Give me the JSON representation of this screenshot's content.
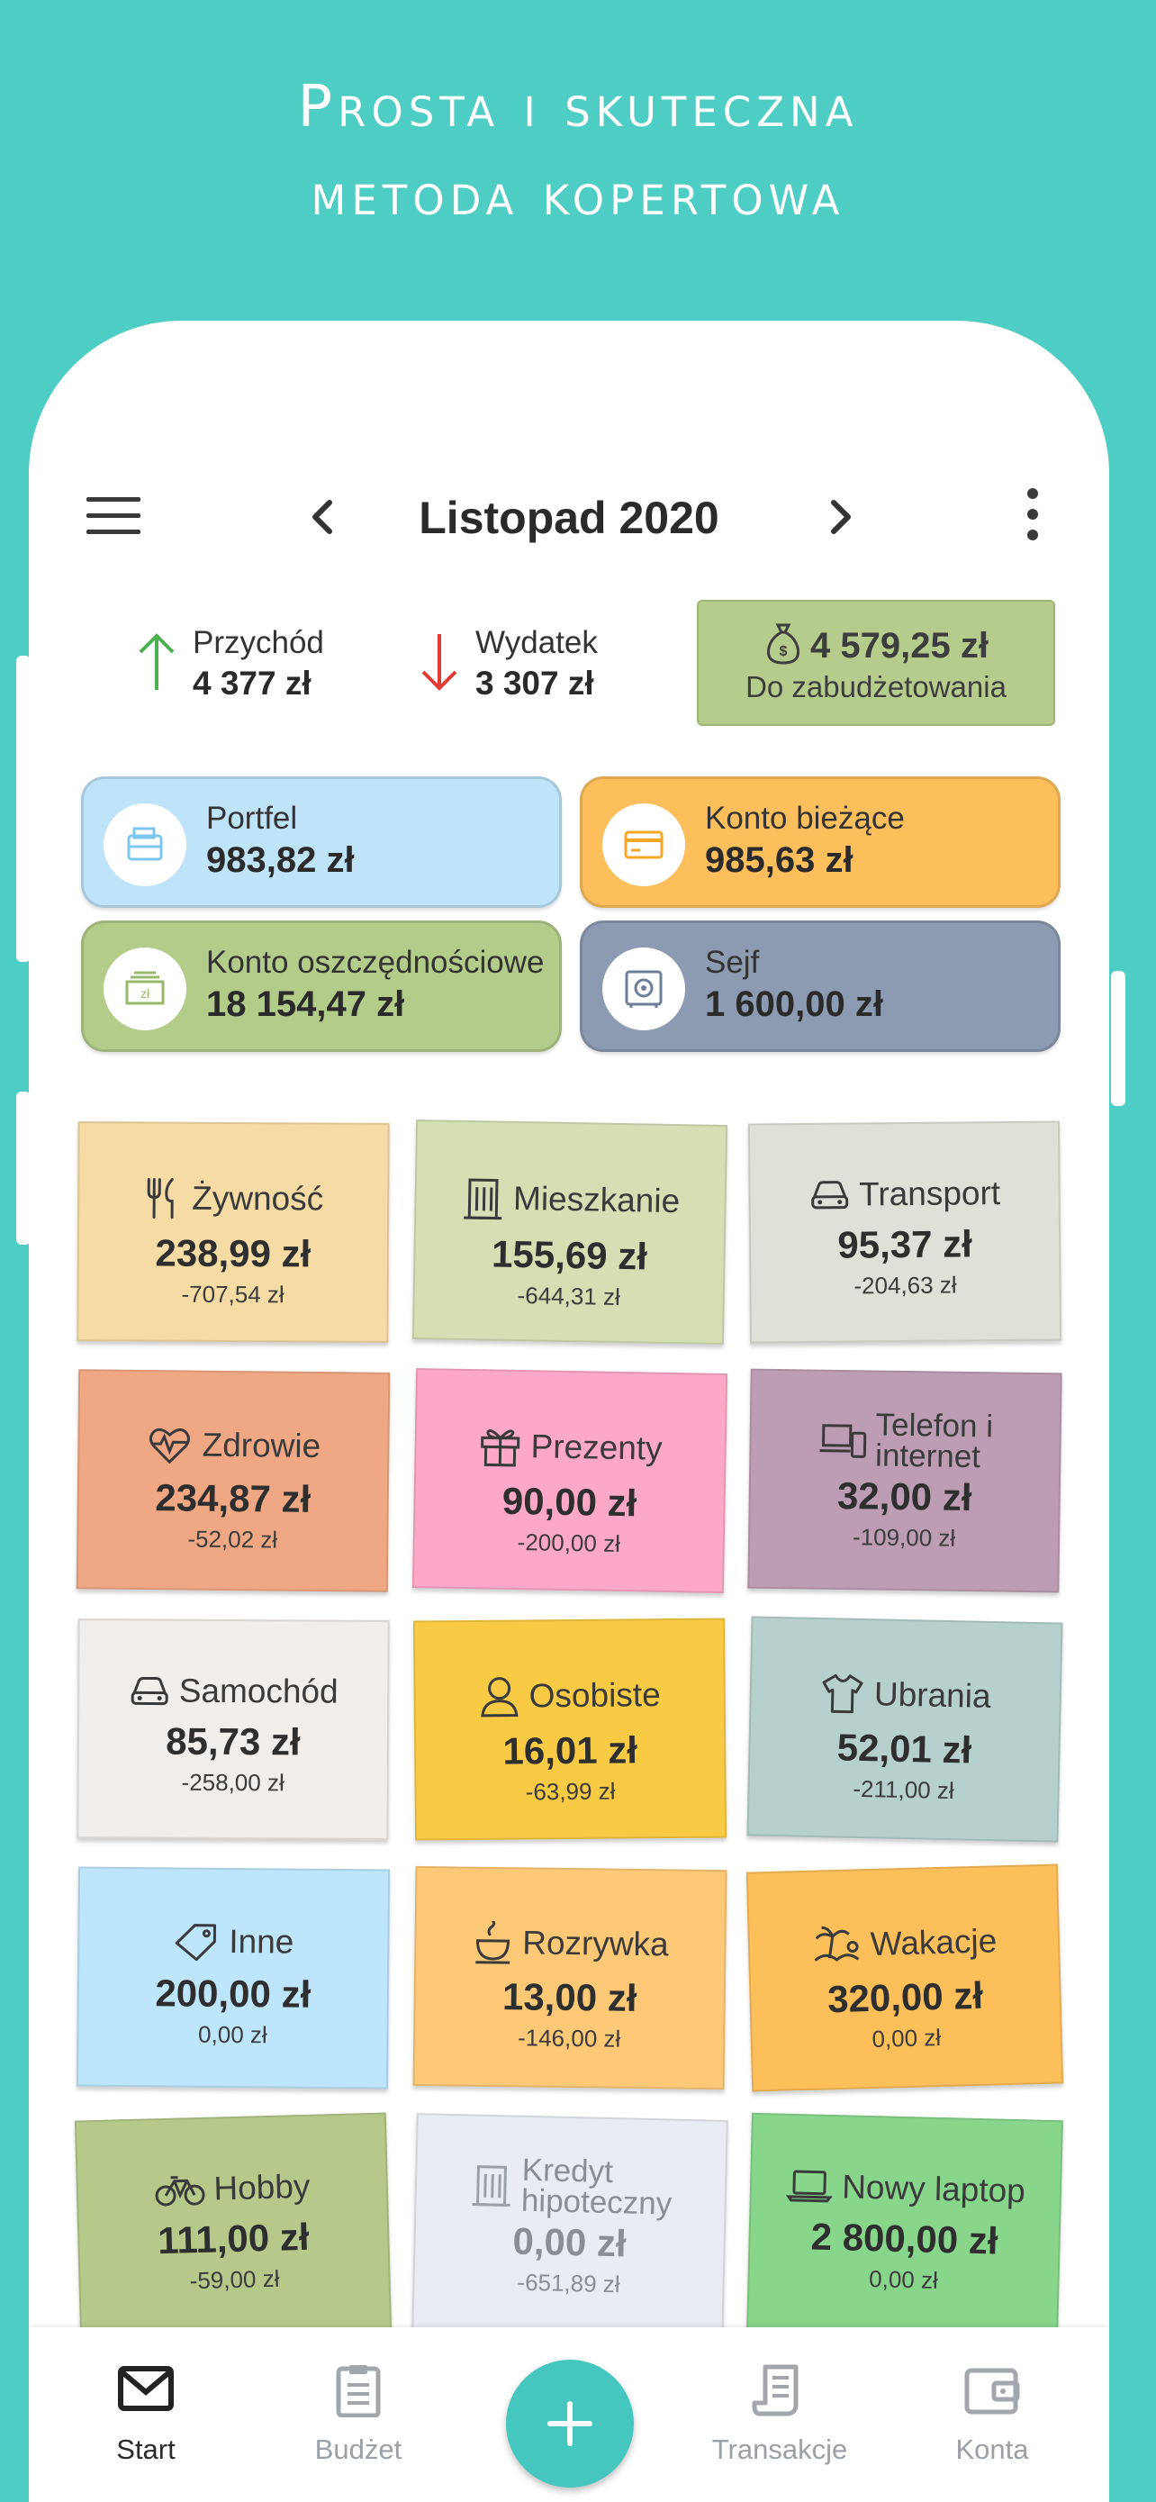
{
  "promo": {
    "line1": "Prosta i skuteczna",
    "line2": "metoda kopertowa"
  },
  "header": {
    "month": "Listopad 2020"
  },
  "summary": {
    "income_label": "Przychód",
    "income_amount": "4 377 zł",
    "expense_label": "Wydatek",
    "expense_amount": "3 307 zł",
    "to_budget_amount": "4 579,25 zł",
    "to_budget_label": "Do zabudżetowania"
  },
  "accounts": [
    {
      "name": "Portfel",
      "balance": "983,82 zł",
      "color": "#bfe4fa",
      "icon": "wallet-icon"
    },
    {
      "name": "Konto bieżące",
      "balance": "985,63 zł",
      "color": "#fdbf5c",
      "icon": "credit-card-icon"
    },
    {
      "name": "Konto oszczędnościowe",
      "balance": "18 154,47 zł",
      "color": "#b4cc8a",
      "icon": "cash-stack-icon"
    },
    {
      "name": "Sejf",
      "balance": "1 600,00 zł",
      "color": "#8c9bb2",
      "icon": "safe-icon"
    }
  ],
  "envelopes": [
    {
      "name": "Żywność",
      "amount": "238,99 zł",
      "spent": "-707,54 zł",
      "color": "#f6dca4",
      "icon": "cutlery-icon"
    },
    {
      "name": "Mieszkanie",
      "amount": "155,69 zł",
      "spent": "-644,31 zł",
      "color": "#d6dfb4",
      "icon": "building-icon"
    },
    {
      "name": "Transport",
      "amount": "95,37 zł",
      "spent": "-204,63 zł",
      "color": "#e0e0d8",
      "icon": "car-icon"
    },
    {
      "name": "Zdrowie",
      "amount": "234,87 zł",
      "spent": "-52,02 zł",
      "color": "#f0a884",
      "icon": "heartbeat-icon"
    },
    {
      "name": "Prezenty",
      "amount": "90,00 zł",
      "spent": "-200,00 zł",
      "color": "#fda8c8",
      "icon": "gift-icon"
    },
    {
      "name": "Telefon i",
      "name2": "internet",
      "amount": "32,00 zł",
      "spent": "-109,00 zł",
      "color": "#bd9db3",
      "icon": "devices-icon"
    },
    {
      "name": "Samochód",
      "amount": "85,73 zł",
      "spent": "-258,00 zł",
      "color": "#f1eeeb",
      "icon": "car-front-icon"
    },
    {
      "name": "Osobiste",
      "amount": "16,01 zł",
      "spent": "-63,99 zł",
      "color": "#f9cb44",
      "icon": "person-icon"
    },
    {
      "name": "Ubrania",
      "amount": "52,01 zł",
      "spent": "-211,00 zł",
      "color": "#b6d1cd",
      "icon": "shirt-icon"
    },
    {
      "name": "Inne",
      "amount": "200,00 zł",
      "spent": "0,00 zł",
      "color": "#bde5fb",
      "icon": "tag-icon"
    },
    {
      "name": "Rozrywka",
      "amount": "13,00 zł",
      "spent": "-146,00 zł",
      "color": "#fdc977",
      "icon": "coffee-icon"
    },
    {
      "name": "Wakacje",
      "amount": "320,00 zł",
      "spent": "0,00 zł",
      "color": "#fdbf5a",
      "icon": "vacation-icon"
    },
    {
      "name": "Hobby",
      "amount": "111,00 zł",
      "spent": "-59,00 zł",
      "color": "#b6c98a",
      "icon": "bicycle-icon"
    },
    {
      "name": "Kredyt",
      "name2": "hipoteczny",
      "amount": "0,00 zł",
      "spent": "-651,89 zł",
      "color": "#e9ecf2",
      "icon": "building-icon",
      "muted": true
    },
    {
      "name": "Nowy laptop",
      "amount": "2 800,00 zł",
      "spent": "0,00 zł",
      "color": "#87d68c",
      "icon": "laptop-icon"
    }
  ],
  "bottom_nav": {
    "start": "Start",
    "budget": "Budżet",
    "transactions": "Transakcje",
    "accounts": "Konta"
  },
  "colors": {
    "background": "#4ecdc4",
    "fab": "#45c7bf",
    "income_arrow": "#4caf50",
    "expense_arrow": "#e53935"
  }
}
